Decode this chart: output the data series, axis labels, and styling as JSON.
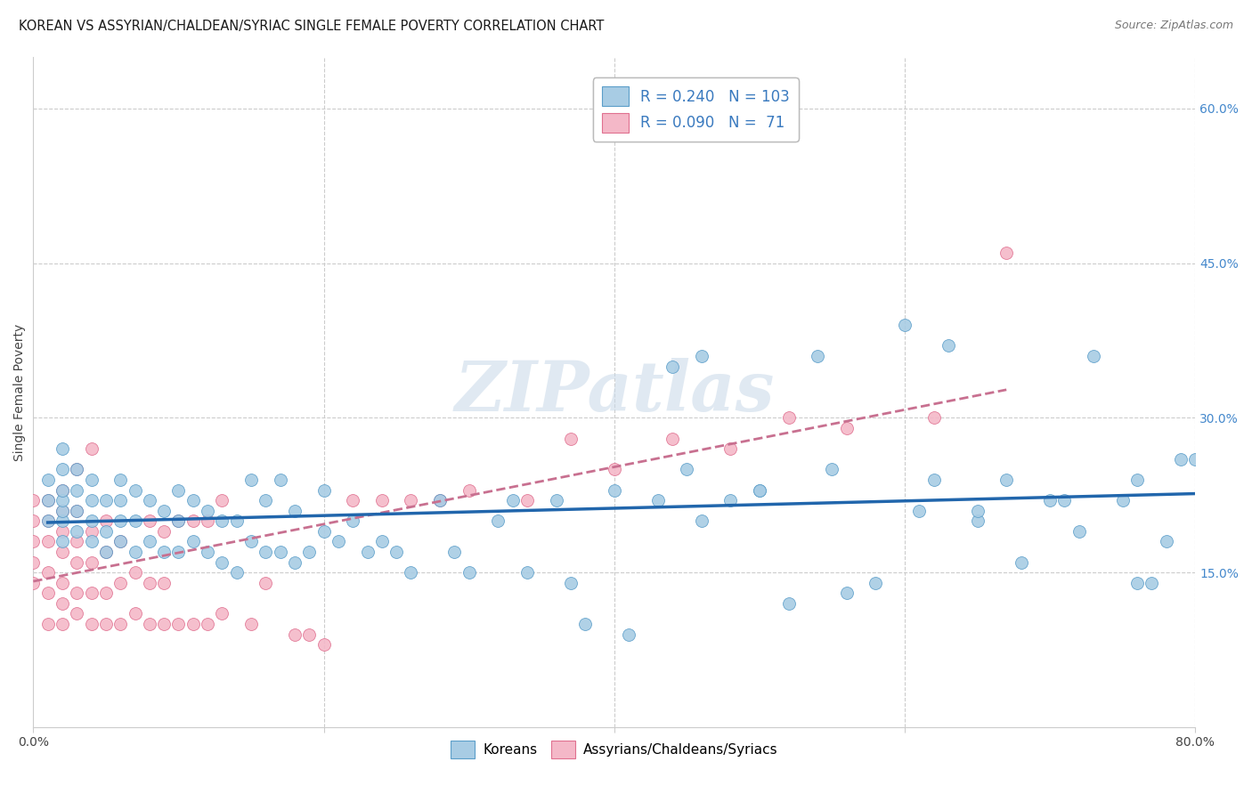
{
  "title": "KOREAN VS ASSYRIAN/CHALDEAN/SYRIAC SINGLE FEMALE POVERTY CORRELATION CHART",
  "source": "Source: ZipAtlas.com",
  "ylabel": "Single Female Poverty",
  "xlim": [
    0.0,
    0.8
  ],
  "ylim": [
    0.0,
    0.65
  ],
  "blue_R": 0.24,
  "blue_N": 103,
  "pink_R": 0.09,
  "pink_N": 71,
  "blue_color": "#a8cce4",
  "pink_color": "#f4b8c8",
  "blue_edge_color": "#5b9ec9",
  "pink_edge_color": "#e07090",
  "blue_line_color": "#2166ac",
  "pink_line_color": "#c87090",
  "watermark": "ZIPatlas",
  "legend_label_blue": "Koreans",
  "legend_label_pink": "Assyrians/Chaldeans/Syriacs",
  "background_color": "#ffffff",
  "grid_color": "#cccccc",
  "blue_x": [
    0.01,
    0.01,
    0.01,
    0.02,
    0.02,
    0.02,
    0.02,
    0.02,
    0.02,
    0.02,
    0.03,
    0.03,
    0.03,
    0.03,
    0.04,
    0.04,
    0.04,
    0.04,
    0.05,
    0.05,
    0.05,
    0.06,
    0.06,
    0.06,
    0.06,
    0.07,
    0.07,
    0.07,
    0.08,
    0.08,
    0.09,
    0.09,
    0.1,
    0.1,
    0.1,
    0.11,
    0.11,
    0.12,
    0.12,
    0.13,
    0.13,
    0.14,
    0.14,
    0.15,
    0.15,
    0.16,
    0.16,
    0.17,
    0.17,
    0.18,
    0.18,
    0.19,
    0.2,
    0.2,
    0.21,
    0.22,
    0.23,
    0.24,
    0.25,
    0.26,
    0.28,
    0.29,
    0.3,
    0.32,
    0.33,
    0.34,
    0.36,
    0.37,
    0.38,
    0.4,
    0.41,
    0.43,
    0.45,
    0.46,
    0.48,
    0.5,
    0.52,
    0.54,
    0.56,
    0.58,
    0.6,
    0.62,
    0.63,
    0.65,
    0.67,
    0.68,
    0.7,
    0.72,
    0.73,
    0.75,
    0.76,
    0.77,
    0.78,
    0.79,
    0.8,
    0.44,
    0.46,
    0.5,
    0.55,
    0.61,
    0.65,
    0.71,
    0.76
  ],
  "blue_y": [
    0.2,
    0.22,
    0.24,
    0.18,
    0.2,
    0.21,
    0.22,
    0.23,
    0.25,
    0.27,
    0.19,
    0.21,
    0.23,
    0.25,
    0.18,
    0.2,
    0.22,
    0.24,
    0.17,
    0.19,
    0.22,
    0.18,
    0.2,
    0.22,
    0.24,
    0.17,
    0.2,
    0.23,
    0.18,
    0.22,
    0.17,
    0.21,
    0.17,
    0.2,
    0.23,
    0.18,
    0.22,
    0.17,
    0.21,
    0.16,
    0.2,
    0.15,
    0.2,
    0.18,
    0.24,
    0.17,
    0.22,
    0.17,
    0.24,
    0.16,
    0.21,
    0.17,
    0.19,
    0.23,
    0.18,
    0.2,
    0.17,
    0.18,
    0.17,
    0.15,
    0.22,
    0.17,
    0.15,
    0.2,
    0.22,
    0.15,
    0.22,
    0.14,
    0.1,
    0.23,
    0.09,
    0.22,
    0.25,
    0.2,
    0.22,
    0.23,
    0.12,
    0.36,
    0.13,
    0.14,
    0.39,
    0.24,
    0.37,
    0.2,
    0.24,
    0.16,
    0.22,
    0.19,
    0.36,
    0.22,
    0.24,
    0.14,
    0.18,
    0.26,
    0.26,
    0.35,
    0.36,
    0.23,
    0.25,
    0.21,
    0.21,
    0.22,
    0.14
  ],
  "pink_x": [
    0.0,
    0.0,
    0.0,
    0.0,
    0.0,
    0.01,
    0.01,
    0.01,
    0.01,
    0.01,
    0.01,
    0.02,
    0.02,
    0.02,
    0.02,
    0.02,
    0.02,
    0.02,
    0.03,
    0.03,
    0.03,
    0.03,
    0.03,
    0.03,
    0.04,
    0.04,
    0.04,
    0.04,
    0.04,
    0.05,
    0.05,
    0.05,
    0.05,
    0.06,
    0.06,
    0.06,
    0.07,
    0.07,
    0.08,
    0.08,
    0.08,
    0.09,
    0.09,
    0.09,
    0.1,
    0.1,
    0.11,
    0.11,
    0.12,
    0.12,
    0.13,
    0.13,
    0.15,
    0.16,
    0.18,
    0.19,
    0.2,
    0.22,
    0.24,
    0.26,
    0.28,
    0.3,
    0.34,
    0.37,
    0.4,
    0.44,
    0.48,
    0.52,
    0.56,
    0.62,
    0.67
  ],
  "pink_y": [
    0.14,
    0.16,
    0.18,
    0.2,
    0.22,
    0.1,
    0.13,
    0.15,
    0.18,
    0.2,
    0.22,
    0.1,
    0.12,
    0.14,
    0.17,
    0.19,
    0.21,
    0.23,
    0.11,
    0.13,
    0.16,
    0.18,
    0.21,
    0.25,
    0.1,
    0.13,
    0.16,
    0.19,
    0.27,
    0.1,
    0.13,
    0.17,
    0.2,
    0.1,
    0.14,
    0.18,
    0.11,
    0.15,
    0.1,
    0.14,
    0.2,
    0.1,
    0.14,
    0.19,
    0.1,
    0.2,
    0.1,
    0.2,
    0.1,
    0.2,
    0.11,
    0.22,
    0.1,
    0.14,
    0.09,
    0.09,
    0.08,
    0.22,
    0.22,
    0.22,
    0.22,
    0.23,
    0.22,
    0.28,
    0.25,
    0.28,
    0.27,
    0.3,
    0.29,
    0.3,
    0.46
  ]
}
